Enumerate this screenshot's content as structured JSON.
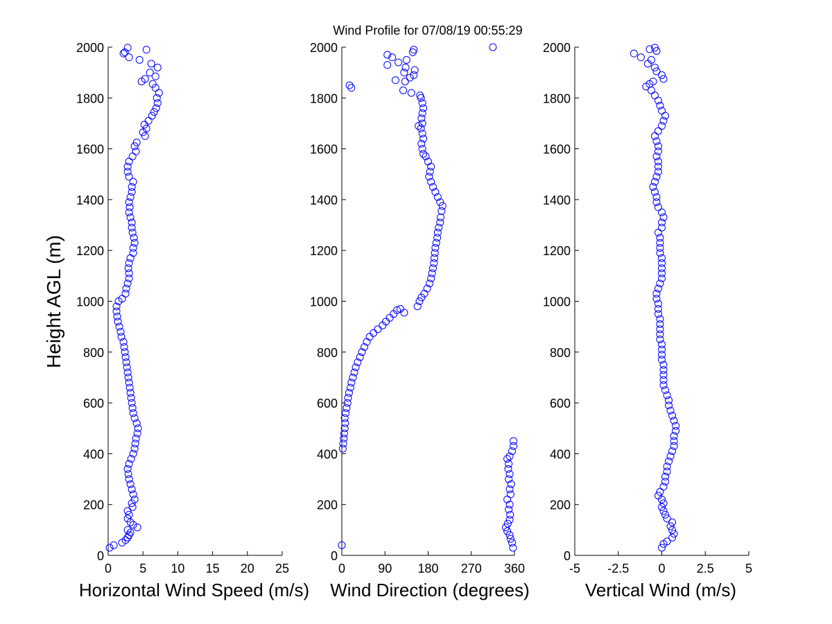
{
  "title": "Wind Profile for  07/08/19 00:55:29",
  "colors": {
    "marker": "#0000ff",
    "axis": "#000000",
    "background": "#ffffff"
  },
  "chart_data": [
    {
      "type": "scatter",
      "xlabel": "Horizontal Wind Speed (m/s)",
      "ylabel": "Height AGL (m)",
      "xlim": [
        0,
        25
      ],
      "ylim": [
        0,
        2000
      ],
      "xticks": [
        "0",
        "5",
        "10",
        "15",
        "20",
        "25"
      ],
      "xtick_values": [
        0,
        5,
        10,
        15,
        20,
        25
      ],
      "yticks": [
        "0",
        "200",
        "400",
        "600",
        "800",
        "1000",
        "1200",
        "1400",
        "1600",
        "1800",
        "2000"
      ],
      "ytick_values": [
        0,
        200,
        400,
        600,
        800,
        1000,
        1200,
        1400,
        1600,
        1800,
        2000
      ],
      "points": [
        [
          0.2,
          30
        ],
        [
          0.8,
          40
        ],
        [
          2.0,
          50
        ],
        [
          2.5,
          60
        ],
        [
          2.8,
          70
        ],
        [
          3.0,
          80
        ],
        [
          3.2,
          90
        ],
        [
          2.8,
          100
        ],
        [
          4.2,
          110
        ],
        [
          3.6,
          120
        ],
        [
          3.2,
          130
        ],
        [
          2.8,
          145
        ],
        [
          3.0,
          160
        ],
        [
          2.8,
          175
        ],
        [
          3.5,
          190
        ],
        [
          3.4,
          205
        ],
        [
          3.8,
          220
        ],
        [
          3.6,
          240
        ],
        [
          3.4,
          260
        ],
        [
          3.2,
          280
        ],
        [
          3.0,
          300
        ],
        [
          2.9,
          320
        ],
        [
          2.8,
          340
        ],
        [
          3.0,
          360
        ],
        [
          3.3,
          380
        ],
        [
          3.6,
          400
        ],
        [
          3.8,
          420
        ],
        [
          3.9,
          440
        ],
        [
          4.0,
          460
        ],
        [
          4.2,
          480
        ],
        [
          4.3,
          500
        ],
        [
          4.1,
          520
        ],
        [
          3.8,
          540
        ],
        [
          3.6,
          560
        ],
        [
          3.5,
          580
        ],
        [
          3.4,
          600
        ],
        [
          3.3,
          620
        ],
        [
          3.2,
          640
        ],
        [
          3.1,
          660
        ],
        [
          3.0,
          680
        ],
        [
          2.9,
          700
        ],
        [
          2.8,
          720
        ],
        [
          2.7,
          740
        ],
        [
          2.6,
          760
        ],
        [
          2.5,
          780
        ],
        [
          2.4,
          800
        ],
        [
          2.3,
          820
        ],
        [
          2.2,
          840
        ],
        [
          1.9,
          860
        ],
        [
          1.8,
          880
        ],
        [
          1.6,
          900
        ],
        [
          1.4,
          920
        ],
        [
          1.3,
          940
        ],
        [
          1.2,
          960
        ],
        [
          1.2,
          980
        ],
        [
          1.5,
          1000
        ],
        [
          2.0,
          1010
        ],
        [
          2.5,
          1030
        ],
        [
          2.6,
          1050
        ],
        [
          2.8,
          1070
        ],
        [
          3.0,
          1090
        ],
        [
          3.0,
          1110
        ],
        [
          2.9,
          1130
        ],
        [
          3.0,
          1150
        ],
        [
          3.2,
          1170
        ],
        [
          3.6,
          1190
        ],
        [
          3.6,
          1210
        ],
        [
          3.8,
          1230
        ],
        [
          3.7,
          1250
        ],
        [
          3.5,
          1270
        ],
        [
          3.4,
          1290
        ],
        [
          3.4,
          1310
        ],
        [
          3.2,
          1330
        ],
        [
          3.0,
          1350
        ],
        [
          3.1,
          1370
        ],
        [
          3.0,
          1390
        ],
        [
          3.2,
          1410
        ],
        [
          3.4,
          1430
        ],
        [
          3.4,
          1450
        ],
        [
          3.6,
          1470
        ],
        [
          3.0,
          1490
        ],
        [
          2.8,
          1510
        ],
        [
          2.8,
          1530
        ],
        [
          3.0,
          1550
        ],
        [
          3.5,
          1570
        ],
        [
          4.0,
          1590
        ],
        [
          3.8,
          1610
        ],
        [
          4.1,
          1625
        ],
        [
          5.3,
          1650
        ],
        [
          5.0,
          1665
        ],
        [
          5.5,
          1680
        ],
        [
          5.2,
          1695
        ],
        [
          5.8,
          1710
        ],
        [
          6.3,
          1730
        ],
        [
          6.6,
          1745
        ],
        [
          6.9,
          1760
        ],
        [
          7.1,
          1780
        ],
        [
          7.0,
          1800
        ],
        [
          7.3,
          1820
        ],
        [
          6.8,
          1840
        ],
        [
          6.4,
          1855
        ],
        [
          4.8,
          1865
        ],
        [
          5.3,
          1875
        ],
        [
          6.8,
          1885
        ],
        [
          6.0,
          1900
        ],
        [
          7.1,
          1920
        ],
        [
          6.2,
          1935
        ],
        [
          4.5,
          1950
        ],
        [
          3.0,
          1960
        ],
        [
          2.2,
          1975
        ],
        [
          2.4,
          1980
        ],
        [
          5.5,
          1990
        ],
        [
          2.8,
          1998
        ]
      ]
    },
    {
      "type": "scatter",
      "xlabel": "Wind Direction (degrees)",
      "xlim": [
        0,
        360
      ],
      "ylim": [
        0,
        2000
      ],
      "xticks": [
        "0",
        "90",
        "180",
        "270",
        "360"
      ],
      "xtick_values": [
        0,
        90,
        180,
        270,
        360
      ],
      "yticks": [
        "0",
        "200",
        "400",
        "600",
        "800",
        "1000",
        "1200",
        "1400",
        "1600",
        "1800",
        "2000"
      ],
      "ytick_values": [
        0,
        200,
        400,
        600,
        800,
        1000,
        1200,
        1400,
        1600,
        1800,
        2000
      ],
      "points": [
        [
          357,
          30
        ],
        [
          355,
          50
        ],
        [
          352,
          65
        ],
        [
          350,
          80
        ],
        [
          345,
          95
        ],
        [
          342,
          110
        ],
        [
          346,
          125
        ],
        [
          350,
          140
        ],
        [
          351,
          160
        ],
        [
          348,
          180
        ],
        [
          350,
          200
        ],
        [
          345,
          220
        ],
        [
          352,
          240
        ],
        [
          350,
          260
        ],
        [
          353,
          280
        ],
        [
          348,
          300
        ],
        [
          350,
          320
        ],
        [
          347,
          340
        ],
        [
          348,
          360
        ],
        [
          345,
          380
        ],
        [
          350,
          390
        ],
        [
          355,
          410
        ],
        [
          358,
          430
        ],
        [
          358,
          450
        ],
        [
          0,
          40
        ],
        [
          2,
          420
        ],
        [
          3,
          440
        ],
        [
          4,
          460
        ],
        [
          5,
          480
        ],
        [
          6,
          500
        ],
        [
          7,
          520
        ],
        [
          6,
          540
        ],
        [
          8,
          560
        ],
        [
          10,
          580
        ],
        [
          12,
          600
        ],
        [
          13,
          620
        ],
        [
          15,
          640
        ],
        [
          18,
          660
        ],
        [
          20,
          680
        ],
        [
          23,
          700
        ],
        [
          26,
          720
        ],
        [
          29,
          740
        ],
        [
          33,
          760
        ],
        [
          38,
          780
        ],
        [
          42,
          800
        ],
        [
          47,
          820
        ],
        [
          52,
          840
        ],
        [
          58,
          860
        ],
        [
          66,
          875
        ],
        [
          75,
          890
        ],
        [
          85,
          905
        ],
        [
          92,
          920
        ],
        [
          100,
          935
        ],
        [
          108,
          950
        ],
        [
          115,
          965
        ],
        [
          122,
          970
        ],
        [
          130,
          955
        ],
        [
          158,
          980
        ],
        [
          162,
          1000
        ],
        [
          166,
          1015
        ],
        [
          172,
          1030
        ],
        [
          178,
          1050
        ],
        [
          183,
          1070
        ],
        [
          186,
          1090
        ],
        [
          188,
          1110
        ],
        [
          190,
          1130
        ],
        [
          192,
          1150
        ],
        [
          193,
          1170
        ],
        [
          194,
          1190
        ],
        [
          195,
          1210
        ],
        [
          197,
          1230
        ],
        [
          199,
          1250
        ],
        [
          200,
          1270
        ],
        [
          202,
          1290
        ],
        [
          205,
          1310
        ],
        [
          206,
          1330
        ],
        [
          208,
          1355
        ],
        [
          210,
          1375
        ],
        [
          205,
          1390
        ],
        [
          200,
          1410
        ],
        [
          195,
          1430
        ],
        [
          190,
          1450
        ],
        [
          186,
          1470
        ],
        [
          182,
          1490
        ],
        [
          184,
          1510
        ],
        [
          186,
          1530
        ],
        [
          180,
          1550
        ],
        [
          175,
          1570
        ],
        [
          170,
          1580
        ],
        [
          168,
          1600
        ],
        [
          166,
          1620
        ],
        [
          170,
          1640
        ],
        [
          168,
          1660
        ],
        [
          165,
          1680
        ],
        [
          160,
          1690
        ],
        [
          168,
          1700
        ],
        [
          166,
          1720
        ],
        [
          168,
          1740
        ],
        [
          170,
          1760
        ],
        [
          168,
          1780
        ],
        [
          165,
          1800
        ],
        [
          163,
          1810
        ],
        [
          16,
          1850
        ],
        [
          20,
          1840
        ],
        [
          145,
          1820
        ],
        [
          128,
          1830
        ],
        [
          112,
          1870
        ],
        [
          132,
          1865
        ],
        [
          142,
          1880
        ],
        [
          150,
          1890
        ],
        [
          130,
          1900
        ],
        [
          152,
          1910
        ],
        [
          133,
          1920
        ],
        [
          95,
          1930
        ],
        [
          118,
          1940
        ],
        [
          135,
          1950
        ],
        [
          105,
          1960
        ],
        [
          95,
          1970
        ],
        [
          148,
          1980
        ],
        [
          150,
          1990
        ],
        [
          315,
          2000
        ]
      ]
    },
    {
      "type": "scatter",
      "xlabel": "Vertical Wind (m/s)",
      "xlim": [
        -5,
        5
      ],
      "ylim": [
        0,
        2000
      ],
      "xticks": [
        "-5",
        "-2.5",
        "0",
        "2.5",
        "5"
      ],
      "xtick_values": [
        -5,
        -2.5,
        0,
        2.5,
        5
      ],
      "yticks": [
        "0",
        "200",
        "400",
        "600",
        "800",
        "1000",
        "1200",
        "1400",
        "1600",
        "1800",
        "2000"
      ],
      "ytick_values": [
        0,
        200,
        400,
        600,
        800,
        1000,
        1200,
        1400,
        1600,
        1800,
        2000
      ],
      "points": [
        [
          0.0,
          30
        ],
        [
          0.1,
          45
        ],
        [
          0.3,
          55
        ],
        [
          0.6,
          70
        ],
        [
          0.7,
          85
        ],
        [
          0.6,
          100
        ],
        [
          0.5,
          115
        ],
        [
          0.6,
          130
        ],
        [
          0.3,
          145
        ],
        [
          0.2,
          160
        ],
        [
          0.1,
          175
        ],
        [
          0.0,
          190
        ],
        [
          0.1,
          205
        ],
        [
          0.0,
          220
        ],
        [
          -0.2,
          235
        ],
        [
          -0.1,
          250
        ],
        [
          0.1,
          270
        ],
        [
          0.2,
          290
        ],
        [
          0.2,
          310
        ],
        [
          0.3,
          330
        ],
        [
          0.3,
          350
        ],
        [
          0.4,
          370
        ],
        [
          0.5,
          390
        ],
        [
          0.6,
          410
        ],
        [
          0.7,
          430
        ],
        [
          0.7,
          450
        ],
        [
          0.7,
          470
        ],
        [
          0.8,
          490
        ],
        [
          0.8,
          510
        ],
        [
          0.7,
          530
        ],
        [
          0.6,
          550
        ],
        [
          0.5,
          570
        ],
        [
          0.4,
          590
        ],
        [
          0.4,
          610
        ],
        [
          0.3,
          630
        ],
        [
          0.2,
          650
        ],
        [
          0.1,
          670
        ],
        [
          0.1,
          690
        ],
        [
          0.1,
          710
        ],
        [
          0.1,
          730
        ],
        [
          0.1,
          750
        ],
        [
          0.0,
          770
        ],
        [
          0.0,
          790
        ],
        [
          0.0,
          810
        ],
        [
          0.0,
          830
        ],
        [
          -0.1,
          850
        ],
        [
          -0.1,
          870
        ],
        [
          -0.1,
          890
        ],
        [
          -0.1,
          910
        ],
        [
          -0.1,
          930
        ],
        [
          -0.2,
          950
        ],
        [
          -0.2,
          970
        ],
        [
          -0.2,
          990
        ],
        [
          -0.3,
          1010
        ],
        [
          -0.3,
          1030
        ],
        [
          -0.2,
          1050
        ],
        [
          -0.1,
          1070
        ],
        [
          0.0,
          1090
        ],
        [
          0.0,
          1110
        ],
        [
          0.0,
          1130
        ],
        [
          0.0,
          1150
        ],
        [
          0.0,
          1170
        ],
        [
          -0.1,
          1190
        ],
        [
          -0.1,
          1210
        ],
        [
          -0.1,
          1230
        ],
        [
          -0.1,
          1250
        ],
        [
          -0.2,
          1270
        ],
        [
          0.0,
          1290
        ],
        [
          0.0,
          1310
        ],
        [
          0.1,
          1330
        ],
        [
          0.0,
          1350
        ],
        [
          -0.2,
          1370
        ],
        [
          -0.3,
          1390
        ],
        [
          -0.3,
          1410
        ],
        [
          -0.4,
          1430
        ],
        [
          -0.5,
          1450
        ],
        [
          -0.4,
          1470
        ],
        [
          -0.3,
          1490
        ],
        [
          -0.2,
          1510
        ],
        [
          -0.2,
          1530
        ],
        [
          -0.2,
          1550
        ],
        [
          -0.3,
          1570
        ],
        [
          -0.2,
          1590
        ],
        [
          -0.2,
          1610
        ],
        [
          -0.3,
          1630
        ],
        [
          -0.4,
          1650
        ],
        [
          -0.2,
          1670
        ],
        [
          0.0,
          1690
        ],
        [
          0.1,
          1710
        ],
        [
          0.2,
          1730
        ],
        [
          0.0,
          1750
        ],
        [
          -0.1,
          1770
        ],
        [
          -0.2,
          1790
        ],
        [
          -0.4,
          1810
        ],
        [
          -0.6,
          1830
        ],
        [
          -0.9,
          1845
        ],
        [
          -0.7,
          1855
        ],
        [
          -0.5,
          1865
        ],
        [
          0.1,
          1875
        ],
        [
          0.0,
          1890
        ],
        [
          -0.3,
          1905
        ],
        [
          -0.4,
          1920
        ],
        [
          -0.8,
          1935
        ],
        [
          -0.6,
          1950
        ],
        [
          -1.2,
          1960
        ],
        [
          -1.6,
          1975
        ],
        [
          -0.3,
          1985
        ],
        [
          -0.7,
          1992
        ],
        [
          -0.4,
          1998
        ]
      ]
    }
  ]
}
